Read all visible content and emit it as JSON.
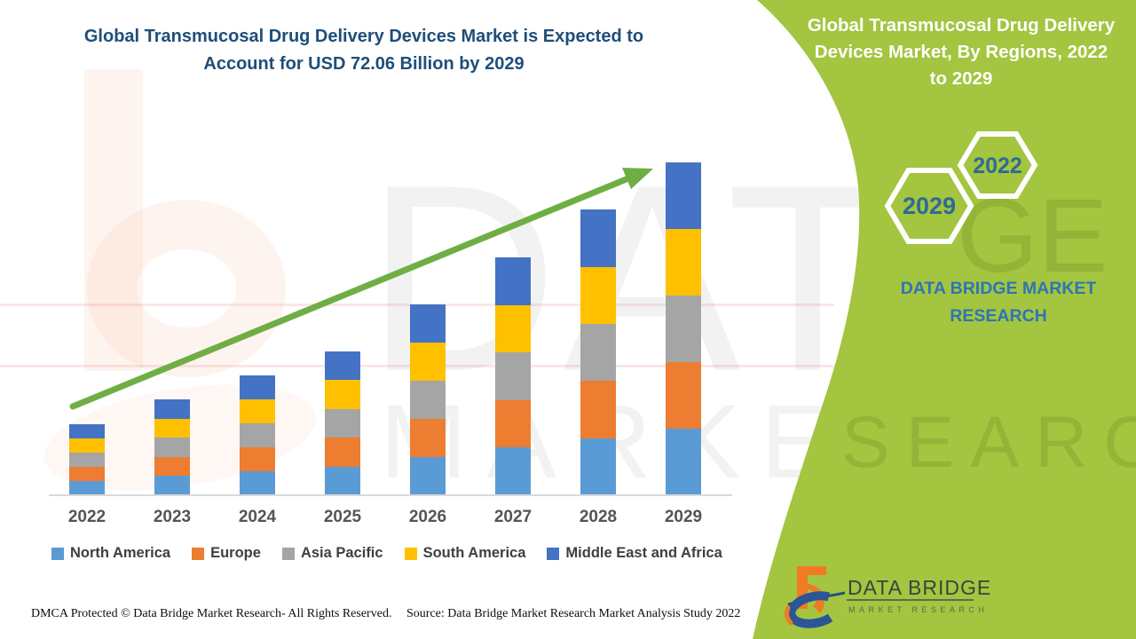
{
  "title": "Global Transmucosal Drug Delivery Devices Market is Expected to Account for USD 72.06 Billion by 2029",
  "panel": {
    "title": "Global Transmucosal Drug Delivery Devices Market, By Regions, 2022 to 2029",
    "hexagons": [
      "2029",
      "2022"
    ],
    "brand": "DATA BRIDGE MARKET RESEARCH"
  },
  "logo": {
    "name": "DATA BRIDGE",
    "sub": "MARKET RESEARCH"
  },
  "footer": {
    "dmca": "DMCA Protected © Data Bridge Market Research- All Rights Reserved.",
    "source": "Source: Data Bridge Market Research Market Analysis Study 2022"
  },
  "watermark": {
    "line1": "DATA BRIDGE",
    "line2": "MARKET RESEARCH",
    "green_fragment1": "GE",
    "green_fragment2": "SEARCH",
    "b_icon": "data-bridge-b-glyph"
  },
  "colors": {
    "panel_green": "#A3C53F",
    "title_blue": "#1F4E79",
    "brand_blue": "#2E75B6",
    "hex_text_blue": "#2F6B94",
    "arrow_green": "#6FAE44",
    "axis_gray": "#D9D9D9",
    "year_label_gray": "#545454",
    "legend_text_gray": "#3F3F3F",
    "logo_orange": "#F07B22",
    "logo_navy": "#2B5597"
  },
  "chart_data": {
    "type": "bar",
    "stacked": true,
    "units": "USD Billion (values estimated from bar heights; 2029 total labeled USD 72.06 Billion)",
    "categories": [
      "2022",
      "2023",
      "2024",
      "2025",
      "2026",
      "2027",
      "2028",
      "2029"
    ],
    "series": [
      {
        "name": "North America",
        "color": "#5B9BD5",
        "values": [
          3.08,
          4.15,
          5.19,
          6.23,
          8.26,
          10.3,
          12.37,
          14.41
        ]
      },
      {
        "name": "Europe",
        "color": "#ED7D31",
        "values": [
          3.08,
          4.15,
          5.19,
          6.23,
          8.26,
          10.3,
          12.37,
          14.41
        ]
      },
      {
        "name": "Asia Pacific",
        "color": "#A5A5A5",
        "values": [
          3.08,
          4.15,
          5.19,
          6.23,
          8.26,
          10.3,
          12.37,
          14.41
        ]
      },
      {
        "name": "South America",
        "color": "#FFC000",
        "values": [
          3.08,
          4.15,
          5.19,
          6.23,
          8.26,
          10.3,
          12.37,
          14.41
        ]
      },
      {
        "name": "Middle East and Africa",
        "color": "#4472C4",
        "values": [
          3.08,
          4.15,
          5.19,
          6.23,
          8.26,
          10.3,
          12.37,
          14.41
        ]
      }
    ],
    "totals": [
      15.4,
      20.75,
      25.95,
      31.15,
      41.3,
      51.5,
      61.85,
      72.06
    ],
    "title": "Global Transmucosal Drug Delivery Devices Market, By Regions, 2022 to 2029",
    "xlabel": "",
    "ylabel": "",
    "legend_position": "bottom",
    "grid": false,
    "annotations": [
      "upward trend arrow from 2022 to 2029"
    ]
  }
}
